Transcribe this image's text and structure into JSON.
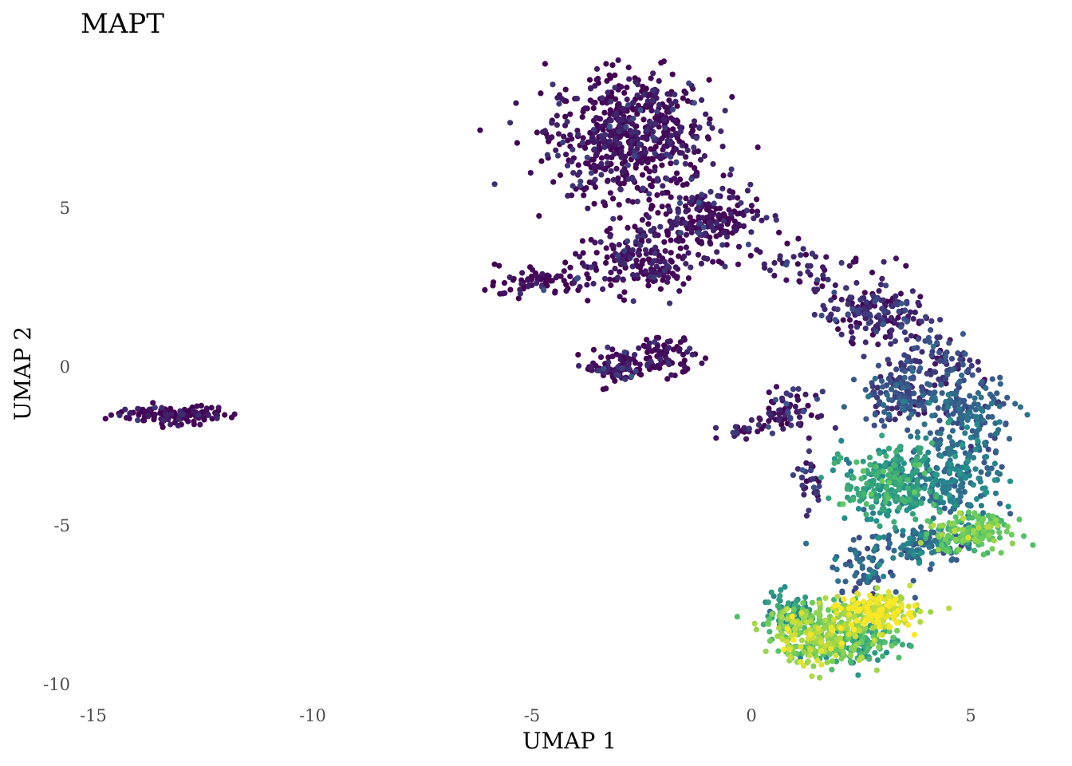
{
  "chart_data": {
    "type": "scatter",
    "title": "MAPT",
    "xlabel": "UMAP 1",
    "ylabel": "UMAP 2",
    "xlim": [
      -15.3,
      6.3
    ],
    "ylim": [
      -10.3,
      9.2
    ],
    "xticks": [
      -15,
      -10,
      -5,
      0,
      5
    ],
    "yticks": [
      -10,
      -5,
      0,
      5
    ],
    "xtick_labels": [
      "-15",
      "-10",
      "-5",
      "0",
      "5"
    ],
    "ytick_labels": [
      "-10",
      "-5",
      "0",
      "5"
    ],
    "grid": false,
    "legend": "none",
    "color_scale": "viridis",
    "colors": {
      "low": "#440154",
      "mid_low": "#3b528b",
      "mid": "#21908c",
      "mid_high": "#5ec962",
      "high": "#fde725"
    },
    "clusters": [
      {
        "x": -13.2,
        "y": -1.5,
        "sx": 0.7,
        "sy": 0.15,
        "n": 120,
        "expr": 0.0
      },
      {
        "x": -2.8,
        "y": 7.3,
        "sx": 0.9,
        "sy": 1.0,
        "n": 650,
        "expr": 0.02
      },
      {
        "x": -1.0,
        "y": 4.6,
        "sx": 0.6,
        "sy": 0.5,
        "n": 220,
        "expr": 0.03
      },
      {
        "x": -2.6,
        "y": 3.3,
        "sx": 0.7,
        "sy": 0.5,
        "n": 180,
        "expr": 0.02
      },
      {
        "x": -4.8,
        "y": 2.7,
        "sx": 0.5,
        "sy": 0.25,
        "n": 70,
        "expr": 0.02
      },
      {
        "x": -3.1,
        "y": 0.0,
        "sx": 0.35,
        "sy": 0.25,
        "n": 90,
        "expr": 0.02
      },
      {
        "x": -2.0,
        "y": 0.3,
        "sx": 0.35,
        "sy": 0.3,
        "n": 80,
        "expr": 0.02
      },
      {
        "x": 1.3,
        "y": 3.2,
        "sx": 0.8,
        "sy": 0.3,
        "n": 50,
        "expr": 0.05
      },
      {
        "x": 2.8,
        "y": 1.7,
        "sx": 0.6,
        "sy": 0.45,
        "n": 170,
        "expr": 0.1
      },
      {
        "x": 4.1,
        "y": 0.2,
        "sx": 0.5,
        "sy": 0.5,
        "n": 110,
        "expr": 0.18
      },
      {
        "x": 3.4,
        "y": -0.9,
        "sx": 0.45,
        "sy": 0.4,
        "n": 130,
        "expr": 0.22
      },
      {
        "x": 5.0,
        "y": -1.5,
        "sx": 0.5,
        "sy": 0.6,
        "n": 150,
        "expr": 0.3
      },
      {
        "x": 0.8,
        "y": -1.4,
        "sx": 0.35,
        "sy": 0.3,
        "n": 70,
        "expr": 0.08
      },
      {
        "x": -0.2,
        "y": -2.0,
        "sx": 0.25,
        "sy": 0.12,
        "n": 25,
        "expr": 0.05
      },
      {
        "x": 1.3,
        "y": -3.6,
        "sx": 0.15,
        "sy": 0.45,
        "n": 30,
        "expr": 0.1
      },
      {
        "x": 3.1,
        "y": -3.7,
        "sx": 0.5,
        "sy": 0.6,
        "n": 280,
        "expr": 0.55
      },
      {
        "x": 4.6,
        "y": -3.4,
        "sx": 0.55,
        "sy": 0.7,
        "n": 220,
        "expr": 0.4
      },
      {
        "x": 4.9,
        "y": -5.2,
        "sx": 0.5,
        "sy": 0.3,
        "n": 170,
        "expr": 0.72
      },
      {
        "x": 3.9,
        "y": -5.6,
        "sx": 0.6,
        "sy": 0.3,
        "n": 120,
        "expr": 0.35
      },
      {
        "x": 2.6,
        "y": -6.4,
        "sx": 0.4,
        "sy": 0.4,
        "n": 60,
        "expr": 0.3
      },
      {
        "x": 2.9,
        "y": -7.7,
        "sx": 0.45,
        "sy": 0.3,
        "n": 190,
        "expr": 0.92
      },
      {
        "x": 1.5,
        "y": -8.4,
        "sx": 0.6,
        "sy": 0.45,
        "n": 320,
        "expr": 0.82
      },
      {
        "x": 2.4,
        "y": -8.7,
        "sx": 0.5,
        "sy": 0.35,
        "n": 130,
        "expr": 0.6
      },
      {
        "x": 0.9,
        "y": -7.7,
        "sx": 0.35,
        "sy": 0.3,
        "n": 70,
        "expr": 0.5
      }
    ]
  }
}
